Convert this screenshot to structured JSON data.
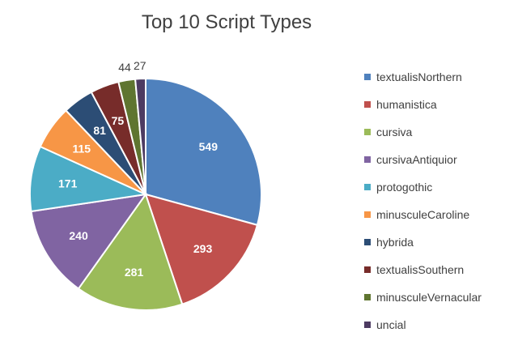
{
  "chart_data": {
    "type": "pie",
    "title": "Top 10 Script Types",
    "categories": [
      "textualisNorthern",
      "humanistica",
      "cursiva",
      "cursivaAntiquior",
      "protogothic",
      "minusculeCaroline",
      "hybrida",
      "textualisSouthern",
      "minusculeVernacular",
      "uncial"
    ],
    "values": [
      549,
      293,
      281,
      240,
      171,
      115,
      81,
      75,
      44,
      27
    ],
    "colors": [
      "#4f81bd",
      "#c0504d",
      "#9bbb59",
      "#8064a2",
      "#4bacc6",
      "#f79646",
      "#2c4d75",
      "#772c2a",
      "#5f7530",
      "#4d3b62"
    ],
    "data_labels": [
      "549",
      "293",
      "281",
      "240",
      "171",
      "115",
      "81",
      "75",
      "44",
      "27"
    ],
    "legend_position": "right",
    "start_angle_deg": 0,
    "direction": "clockwise"
  }
}
